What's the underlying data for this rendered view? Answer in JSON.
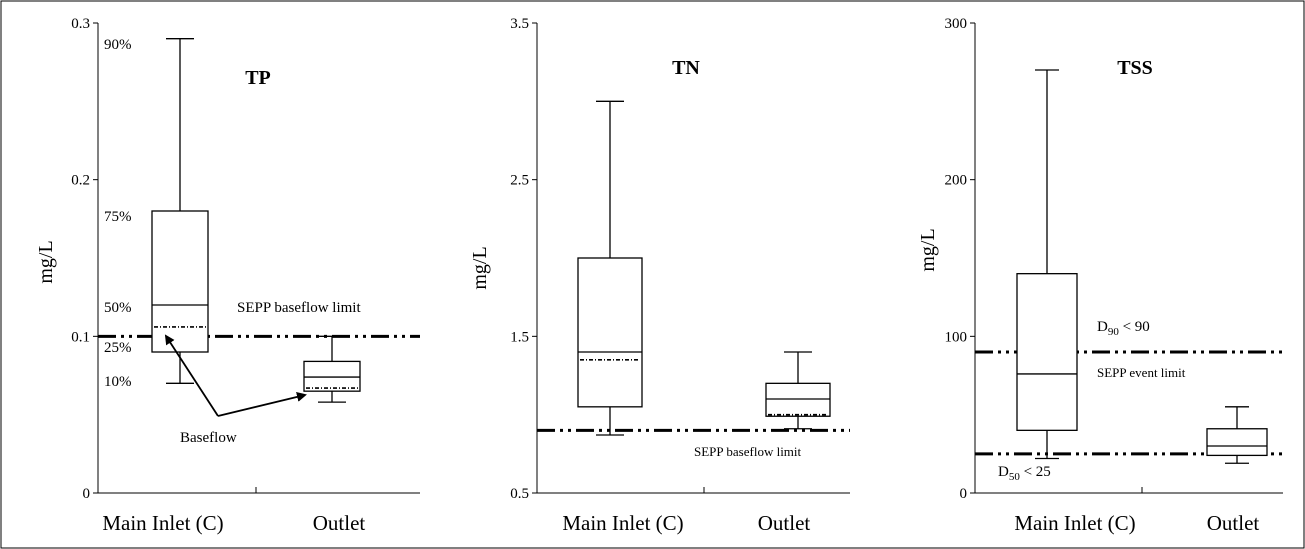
{
  "chart_data": [
    {
      "type": "box",
      "title": "TP",
      "ylabel": "mg/L",
      "ylim": [
        0,
        0.3
      ],
      "yticks": [
        "0",
        "0.1",
        "0.2",
        "0.3"
      ],
      "categories": [
        "Main Inlet (C)",
        "Outlet"
      ],
      "boxes": [
        {
          "category": "Main Inlet (C)",
          "p10": 0.07,
          "p25": 0.09,
          "median": 0.12,
          "p75": 0.18,
          "p90": 0.29,
          "baseflow": 0.106
        },
        {
          "category": "Outlet",
          "p10": 0.058,
          "p25": 0.065,
          "median": 0.074,
          "p75": 0.084,
          "p90": 0.1,
          "baseflow": 0.067
        }
      ],
      "reference_lines": [
        {
          "label": "SEPP  baseflow limit",
          "value": 0.1
        }
      ],
      "percentile_labels": [
        "90%",
        "75%",
        "50%",
        "25%",
        "10%"
      ],
      "annotation": "Baseflow"
    },
    {
      "type": "box",
      "title": "TN",
      "ylabel": "mg/L",
      "ylim": [
        0.5,
        3.5
      ],
      "yticks": [
        "0.5",
        "1.5",
        "2.5",
        "3.5"
      ],
      "categories": [
        "Main Inlet (C)",
        "Outlet"
      ],
      "boxes": [
        {
          "category": "Main Inlet (C)",
          "p10": 0.87,
          "p25": 1.05,
          "median": 1.4,
          "p75": 2.0,
          "p90": 3.0,
          "baseflow": 1.35
        },
        {
          "category": "Outlet",
          "p10": 0.91,
          "p25": 0.99,
          "median": 1.1,
          "p75": 1.2,
          "p90": 1.4,
          "baseflow": 1.0
        }
      ],
      "reference_lines": [
        {
          "label": "SEPP  baseflow limit",
          "value": 0.9
        }
      ]
    },
    {
      "type": "box",
      "title": "TSS",
      "ylabel": "mg/L",
      "ylim": [
        0,
        300
      ],
      "yticks": [
        "0",
        "100",
        "200",
        "300"
      ],
      "categories": [
        "Main Inlet (C)",
        "Outlet"
      ],
      "boxes": [
        {
          "category": "Main Inlet (C)",
          "p10": 22,
          "p25": 40,
          "median": 76,
          "p75": 140,
          "p90": 270
        },
        {
          "category": "Outlet",
          "p10": 19,
          "p25": 24,
          "median": 30,
          "p75": 41,
          "p90": 55
        }
      ],
      "reference_lines": [
        {
          "label": "D90 < 90",
          "value": 90
        },
        {
          "label": "D50 < 25",
          "value": 25
        }
      ],
      "annotation": "SEPP  event limit"
    }
  ]
}
